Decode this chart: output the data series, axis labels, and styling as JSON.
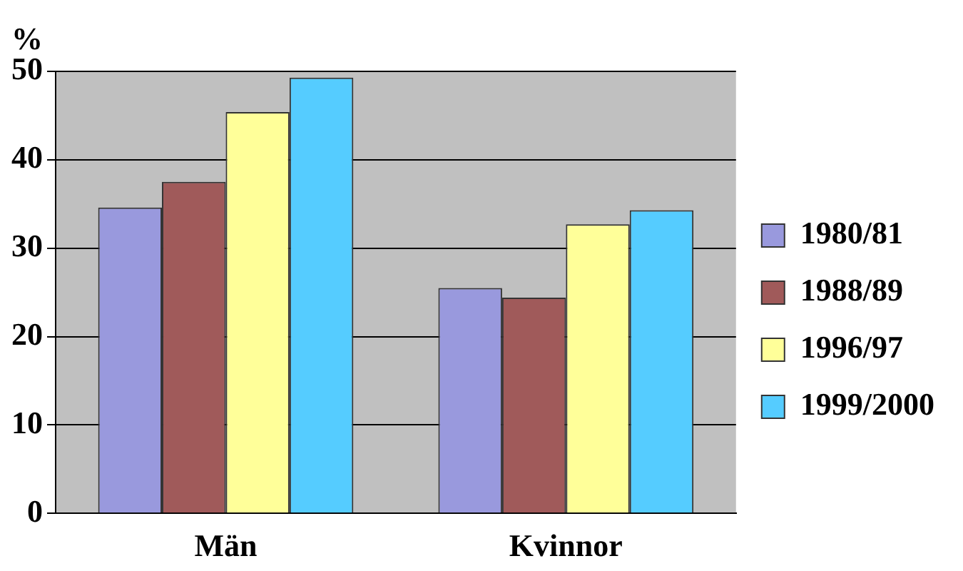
{
  "chart_data": {
    "type": "bar",
    "ylabel": "%",
    "categories": [
      "Män",
      "Kvinnor"
    ],
    "series": [
      {
        "name": "1980/81",
        "color": "#9999dd",
        "values": [
          34.6,
          25.5
        ]
      },
      {
        "name": "1988/89",
        "color": "#a05a5a",
        "values": [
          37.5,
          24.4
        ]
      },
      {
        "name": "1996/97",
        "color": "#ffff99",
        "values": [
          45.4,
          32.7
        ]
      },
      {
        "name": "1999/2000",
        "color": "#55ccff",
        "values": [
          49.3,
          34.3
        ]
      }
    ],
    "ylim": [
      0,
      50
    ],
    "yticks": [
      0,
      10,
      20,
      30,
      40,
      50
    ],
    "grid": "y",
    "legend": "right"
  }
}
